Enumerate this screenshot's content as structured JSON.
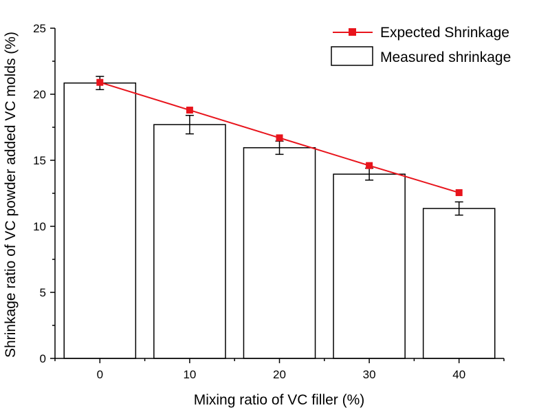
{
  "chart_data": {
    "type": "bar",
    "title": "",
    "xlabel": "Mixing ratio of VC filler (%)",
    "ylabel": "Shrinkage ratio of VC powder added VC molds (%)",
    "categories": [
      "0",
      "10",
      "20",
      "30",
      "40"
    ],
    "x_values": [
      0,
      10,
      20,
      30,
      40
    ],
    "ylim": [
      0,
      25
    ],
    "yticks": [
      0,
      5,
      10,
      15,
      20,
      25
    ],
    "grid": false,
    "legend_position": "top-right",
    "series": [
      {
        "name": "Measured shrinkage",
        "kind": "bar",
        "values": [
          20.85,
          17.7,
          15.95,
          13.95,
          11.35
        ],
        "error": [
          0.5,
          0.7,
          0.5,
          0.45,
          0.5
        ],
        "fill": "#ffffff",
        "stroke": "#000000"
      },
      {
        "name": "Expected Shrinkage",
        "kind": "line",
        "values": [
          20.9,
          18.8,
          16.7,
          14.6,
          12.55
        ],
        "color": "#e8141c"
      }
    ]
  }
}
